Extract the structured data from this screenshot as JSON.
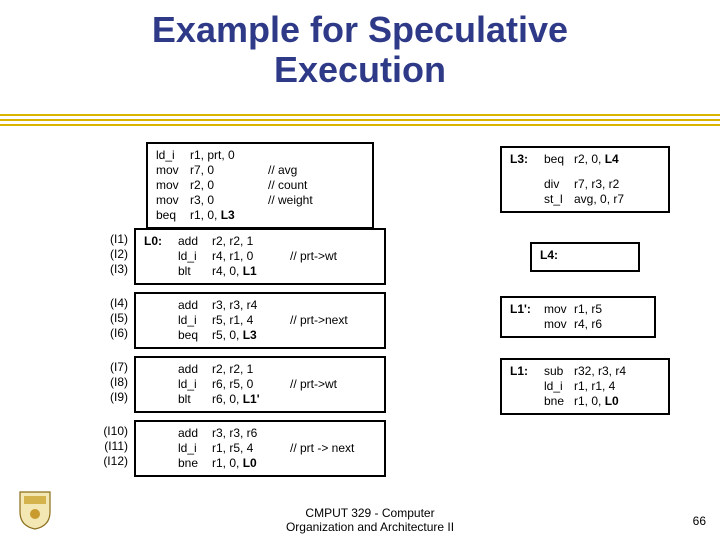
{
  "title_line1": "Example for Speculative",
  "title_line2": "Execution",
  "colors": {
    "title": "#2e3a87",
    "decor_line": "#d9b500",
    "box_border": "#000000",
    "text": "#000000",
    "background": "#ffffff"
  },
  "top_box": {
    "rows": [
      {
        "op": "ld_i",
        "args": "r1, prt, 0",
        "cmt": ""
      },
      {
        "op": "mov",
        "args": "r7, 0",
        "cmt": "// avg"
      },
      {
        "op": "mov",
        "args": "r2, 0",
        "cmt": "// count"
      },
      {
        "op": "mov",
        "args": "r3, 0",
        "cmt": "// weight"
      },
      {
        "op": "beq",
        "args_pre": "r1, 0, ",
        "args_bold": "L3",
        "cmt": ""
      }
    ]
  },
  "box_l0": {
    "labels": [
      "(I1)",
      "(I2)",
      "(I3)"
    ],
    "prefix": "L0:",
    "rows": [
      {
        "op": "add",
        "args": "r2, r2, 1",
        "cmt": ""
      },
      {
        "op": "ld_i",
        "args": "r4, r1, 0",
        "cmt": "// prt->wt"
      },
      {
        "op": "blt",
        "args_pre": "r4, 0, ",
        "args_bold": "L1",
        "cmt": ""
      }
    ]
  },
  "box_b2": {
    "labels": [
      "(I4)",
      "(I5)",
      "(I6)"
    ],
    "rows": [
      {
        "op": "add",
        "args": "r3, r3, r4",
        "cmt": ""
      },
      {
        "op": "ld_i",
        "args": "r5, r1, 4",
        "cmt": "// prt->next"
      },
      {
        "op": "beq",
        "args_pre": "r5, 0, ",
        "args_bold": "L3",
        "cmt": ""
      }
    ]
  },
  "box_b3": {
    "labels": [
      "(I7)",
      "(I8)",
      "(I9)"
    ],
    "rows": [
      {
        "op": "add",
        "args": "r2, r2, 1",
        "cmt": ""
      },
      {
        "op": "ld_i",
        "args": "r6, r5, 0",
        "cmt": "// prt->wt"
      },
      {
        "op": "blt",
        "args_pre": "r6, 0, ",
        "args_bold": "L1'",
        "cmt": ""
      }
    ]
  },
  "box_b4": {
    "labels": [
      "(I10)",
      "(I11)",
      "(I12)"
    ],
    "rows": [
      {
        "op": "add",
        "args": "r3, r3, r6",
        "cmt": ""
      },
      {
        "op": "ld_i",
        "args": "r1, r5, 4",
        "cmt": "// prt -> next"
      },
      {
        "op": "bne",
        "args_pre": "r1, 0, ",
        "args_bold": "L0",
        "cmt": ""
      }
    ]
  },
  "box_l3": {
    "prefix": "L3:",
    "rows_top": [
      {
        "op": "beq",
        "args_pre": "r2, 0, ",
        "args_bold": "L4"
      }
    ],
    "rows_bot": [
      {
        "op": "div",
        "args": "r7, r3, r2"
      },
      {
        "op": "st_l",
        "args": "avg, 0, r7"
      }
    ]
  },
  "box_l4": {
    "prefix": "L4:"
  },
  "box_l1p": {
    "prefix": "L1':",
    "rows": [
      {
        "op": "mov",
        "args": "r1, r5"
      },
      {
        "op": "mov",
        "args": "r4, r6"
      }
    ]
  },
  "box_l1": {
    "prefix": "L1:",
    "rows": [
      {
        "op": "sub",
        "args": "r32, r3, r4"
      },
      {
        "op": "ld_i",
        "args": "r1, r1, 4"
      },
      {
        "op": "bne",
        "args_pre": "r1, 0, ",
        "args_bold": "L0"
      }
    ]
  },
  "footer": {
    "course_line1": "CMPUT 329 - Computer",
    "course_line2": "Organization and Architecture II",
    "slide_number": "66"
  }
}
